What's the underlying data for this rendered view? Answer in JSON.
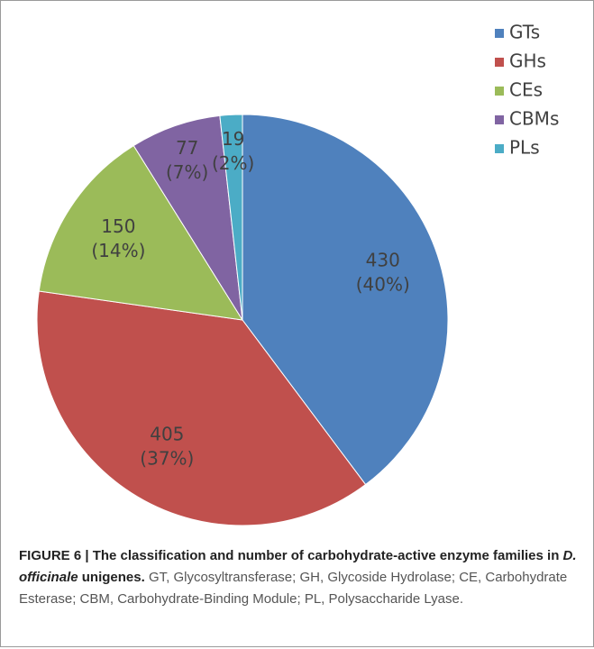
{
  "chart_data": {
    "type": "pie",
    "categories": [
      "GTs",
      "GHs",
      "CEs",
      "CBMs",
      "PLs"
    ],
    "values": [
      430,
      405,
      150,
      77,
      19
    ],
    "percent_labels": [
      "(40%)",
      "(37%)",
      "(14%)",
      "(7%)",
      "(2%)"
    ],
    "colors": [
      "#4f81bd",
      "#c0504d",
      "#9bbb59",
      "#8064a2",
      "#4bacc6"
    ],
    "legend": "right"
  },
  "caption": {
    "bold": [
      "FIGURE 6 | The classification and number of carbohydrate-active enzyme families in ",
      "D. officinale",
      " unigenes."
    ],
    "text": "GT, Glycosyltransferase; GH, Glycoside Hydrolase; CE, Carbohydrate Esterase; CBM, Carbohydrate-Binding Module; PL, Polysaccharide Lyase."
  }
}
